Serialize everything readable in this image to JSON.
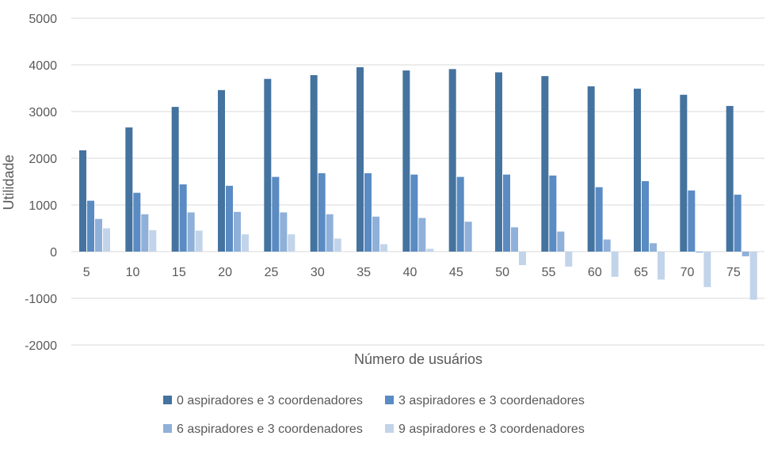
{
  "chart_data": {
    "type": "bar",
    "title": "",
    "xlabel": "Número de usuários",
    "ylabel": "Utilidade",
    "ylim": [
      -2000,
      5000
    ],
    "yticks": [
      "5000",
      "4000",
      "3000",
      "2000",
      "1000",
      "0",
      "-1000",
      "-2000"
    ],
    "ytick_values": [
      5000,
      4000,
      3000,
      2000,
      1000,
      0,
      -1000,
      -2000
    ],
    "categories": [
      "5",
      "10",
      "15",
      "20",
      "25",
      "30",
      "35",
      "40",
      "45",
      "50",
      "55",
      "60",
      "65",
      "70",
      "75"
    ],
    "grid": true,
    "legend_position": "bottom",
    "series": [
      {
        "name": "0 aspiradores e 3 coordenadores",
        "color": "#44739f",
        "values": [
          2170,
          2660,
          3100,
          3460,
          3700,
          3780,
          3950,
          3880,
          3910,
          3840,
          3760,
          3540,
          3490,
          3360,
          3120
        ]
      },
      {
        "name": "3 aspiradores e 3 coordenadores",
        "color": "#5a8bc3",
        "values": [
          1090,
          1260,
          1440,
          1410,
          1600,
          1680,
          1680,
          1650,
          1600,
          1650,
          1630,
          1380,
          1510,
          1310,
          1220
        ]
      },
      {
        "name": "6 aspiradores e 3 coordenadores",
        "color": "#8fb0d8",
        "values": [
          700,
          800,
          840,
          850,
          840,
          800,
          750,
          720,
          640,
          520,
          430,
          260,
          180,
          -20,
          -100
        ]
      },
      {
        "name": "9 aspiradores e 3 coordenadores",
        "color": "#c2d4ea",
        "values": [
          500,
          460,
          450,
          370,
          370,
          280,
          160,
          60,
          0,
          -290,
          -320,
          -540,
          -600,
          -760,
          -1030
        ]
      }
    ]
  }
}
